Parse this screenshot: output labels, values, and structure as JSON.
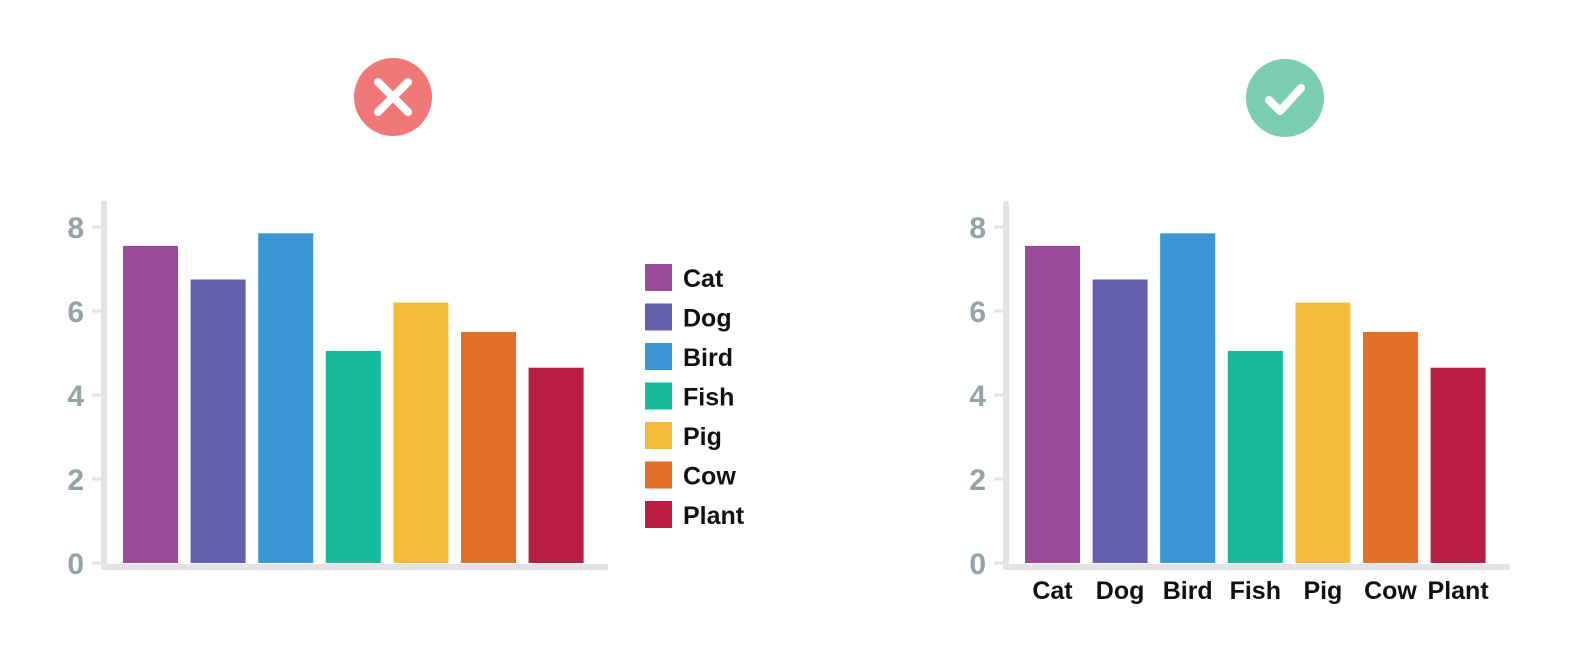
{
  "colors": {
    "axis": "#e2e2e8",
    "tick": "#94a3a8",
    "text": "#111111",
    "bad_badge": "#f07878",
    "good_badge": "#7bcdb3",
    "badge_mark": "#ffffff"
  },
  "icons": {
    "bad": "x-mark-icon",
    "good": "check-mark-icon"
  },
  "chart_data": [
    {
      "type": "bar",
      "variant": "legend-only",
      "categories": [
        "Cat",
        "Dog",
        "Bird",
        "Fish",
        "Pig",
        "Cow",
        "Plant"
      ],
      "values": [
        7.55,
        6.75,
        7.85,
        5.05,
        6.2,
        5.5,
        4.65
      ],
      "colors": [
        "#9c4a9a",
        "#6460ac",
        "#3a96d5",
        "#16ba9a",
        "#f5bb3a",
        "#e37027",
        "#b91e42"
      ],
      "yticks": [
        0,
        2,
        4,
        6,
        8
      ],
      "ylim": [
        0,
        8.55
      ],
      "category_axis_labels": false,
      "legend": true,
      "legend_position": "right",
      "grid": false
    },
    {
      "type": "bar",
      "variant": "direct-labels",
      "categories": [
        "Cat",
        "Dog",
        "Bird",
        "Fish",
        "Pig",
        "Cow",
        "Plant"
      ],
      "values": [
        7.55,
        6.75,
        7.85,
        5.05,
        6.2,
        5.5,
        4.65
      ],
      "colors": [
        "#9c4a9a",
        "#6460ac",
        "#3a96d5",
        "#16ba9a",
        "#f5bb3a",
        "#e37027",
        "#b91e42"
      ],
      "yticks": [
        0,
        2,
        4,
        6,
        8
      ],
      "ylim": [
        0,
        8.55
      ],
      "category_axis_labels": true,
      "legend": false,
      "grid": false
    }
  ]
}
